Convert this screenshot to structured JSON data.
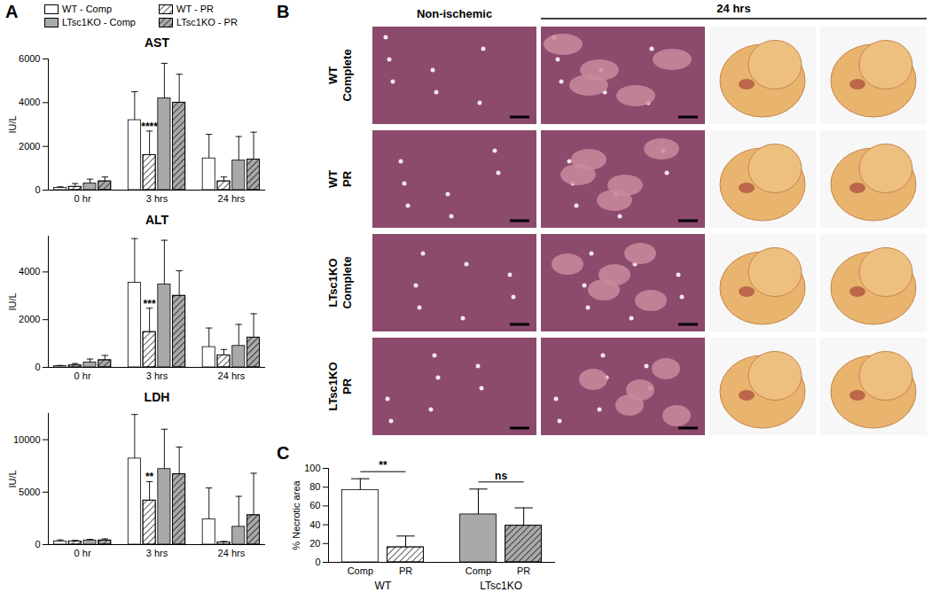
{
  "chart_data": [
    {
      "type": "bar",
      "panel_label": "A",
      "title": "AST",
      "y_label": "IU/L",
      "categories": [
        "0 hr",
        "3 hrs",
        "24 hrs"
      ],
      "series": [
        {
          "name": "WT - Comp",
          "color": "#ffffff",
          "line_style": "solid",
          "values": [
            100,
            3200,
            1450
          ],
          "errors": [
            50,
            1300,
            1100
          ]
        },
        {
          "name": "WT - PR",
          "color": "#ffffff",
          "line_style": "hatch",
          "values": [
            150,
            1600,
            400
          ],
          "errors": [
            150,
            1100,
            200
          ]
        },
        {
          "name": "LTsc1KO - Comp",
          "color": "#a9a9a9",
          "line_style": "solid",
          "values": [
            300,
            4200,
            1350
          ],
          "errors": [
            200,
            1600,
            1100
          ]
        },
        {
          "name": "LTsc1KO - PR",
          "color": "#a9a9a9",
          "line_style": "hatch",
          "values": [
            400,
            4000,
            1400
          ],
          "errors": [
            200,
            1300,
            1250
          ]
        }
      ],
      "ylim": [
        0,
        6000
      ],
      "yticks": [
        0,
        2000,
        4000,
        6000
      ],
      "legend": "top-right",
      "annotations": [
        {
          "text": "****",
          "category": "3 hrs",
          "series": "WT - PR"
        }
      ]
    },
    {
      "type": "bar",
      "title": "ALT",
      "y_label": "IU/L",
      "categories": [
        "0 hr",
        "3 hrs",
        "24 hrs"
      ],
      "series": [
        {
          "name": "WT - Comp",
          "color": "#ffffff",
          "line_style": "solid",
          "values": [
            50,
            3550,
            850
          ],
          "errors": [
            30,
            1850,
            800
          ]
        },
        {
          "name": "WT - PR",
          "color": "#ffffff",
          "line_style": "hatch",
          "values": [
            80,
            1480,
            500
          ],
          "errors": [
            80,
            1000,
            250
          ]
        },
        {
          "name": "LTsc1KO - Comp",
          "color": "#a9a9a9",
          "line_style": "solid",
          "values": [
            200,
            3480,
            900
          ],
          "errors": [
            150,
            1850,
            900
          ]
        },
        {
          "name": "LTsc1KO - PR",
          "color": "#a9a9a9",
          "line_style": "hatch",
          "values": [
            300,
            3000,
            1250
          ],
          "errors": [
            200,
            1050,
            1000
          ]
        }
      ],
      "ylim": [
        0,
        5500
      ],
      "yticks": [
        0,
        2000,
        4000
      ],
      "annotations": [
        {
          "text": "***",
          "category": "3 hrs",
          "series": "WT - PR"
        }
      ]
    },
    {
      "type": "bar",
      "title": "LDH",
      "y_label": "IU/L",
      "categories": [
        "0 hr",
        "3 hrs",
        "24 hrs"
      ],
      "series": [
        {
          "name": "WT - Comp",
          "color": "#ffffff",
          "line_style": "solid",
          "values": [
            300,
            8200,
            2400
          ],
          "errors": [
            150,
            4200,
            3000
          ]
        },
        {
          "name": "WT - PR",
          "color": "#ffffff",
          "line_style": "hatch",
          "values": [
            300,
            4200,
            200
          ],
          "errors": [
            100,
            1800,
            100
          ]
        },
        {
          "name": "LTsc1KO - Comp",
          "color": "#a9a9a9",
          "line_style": "solid",
          "values": [
            400,
            7200,
            1700
          ],
          "errors": [
            100,
            3800,
            2900
          ]
        },
        {
          "name": "LTsc1KO - PR",
          "color": "#a9a9a9",
          "line_style": "hatch",
          "values": [
            400,
            6700,
            2800
          ],
          "errors": [
            150,
            2600,
            4000
          ]
        }
      ],
      "ylim": [
        0,
        12500
      ],
      "yticks": [
        0,
        5000,
        10000
      ],
      "annotations": [
        {
          "text": "**",
          "category": "3 hrs",
          "series": "WT - PR"
        }
      ]
    },
    {
      "type": "bar",
      "panel_label": "C",
      "y_label": "% Necrotic area",
      "categories": [
        "Comp",
        "PR",
        "Comp",
        "PR"
      ],
      "groups": [
        "WT",
        "WT",
        "LTsc1KO",
        "LTsc1KO"
      ],
      "values": [
        77,
        16,
        51,
        39
      ],
      "errors": [
        12,
        12,
        27,
        19
      ],
      "colors": [
        "#ffffff",
        "#ffffff",
        "#a9a9a9",
        "#a9a9a9"
      ],
      "line_styles": [
        "solid",
        "hatch",
        "solid",
        "hatch"
      ],
      "ylim": [
        0,
        100
      ],
      "yticks": [
        0,
        20,
        40,
        60,
        80,
        100
      ],
      "annotations": [
        {
          "text": "**",
          "from": 0,
          "to": 1
        },
        {
          "text": "ns",
          "from": 2,
          "to": 3
        }
      ]
    }
  ],
  "panel_b": {
    "panel_label": "B",
    "column_headers": [
      "Non-ischemic",
      "24 hrs"
    ],
    "row_labels": [
      [
        "WT",
        "Complete"
      ],
      [
        "WT",
        "PR"
      ],
      [
        "LTsc1KO",
        "Complete"
      ],
      [
        "LTsc1KO",
        "PR"
      ]
    ]
  }
}
